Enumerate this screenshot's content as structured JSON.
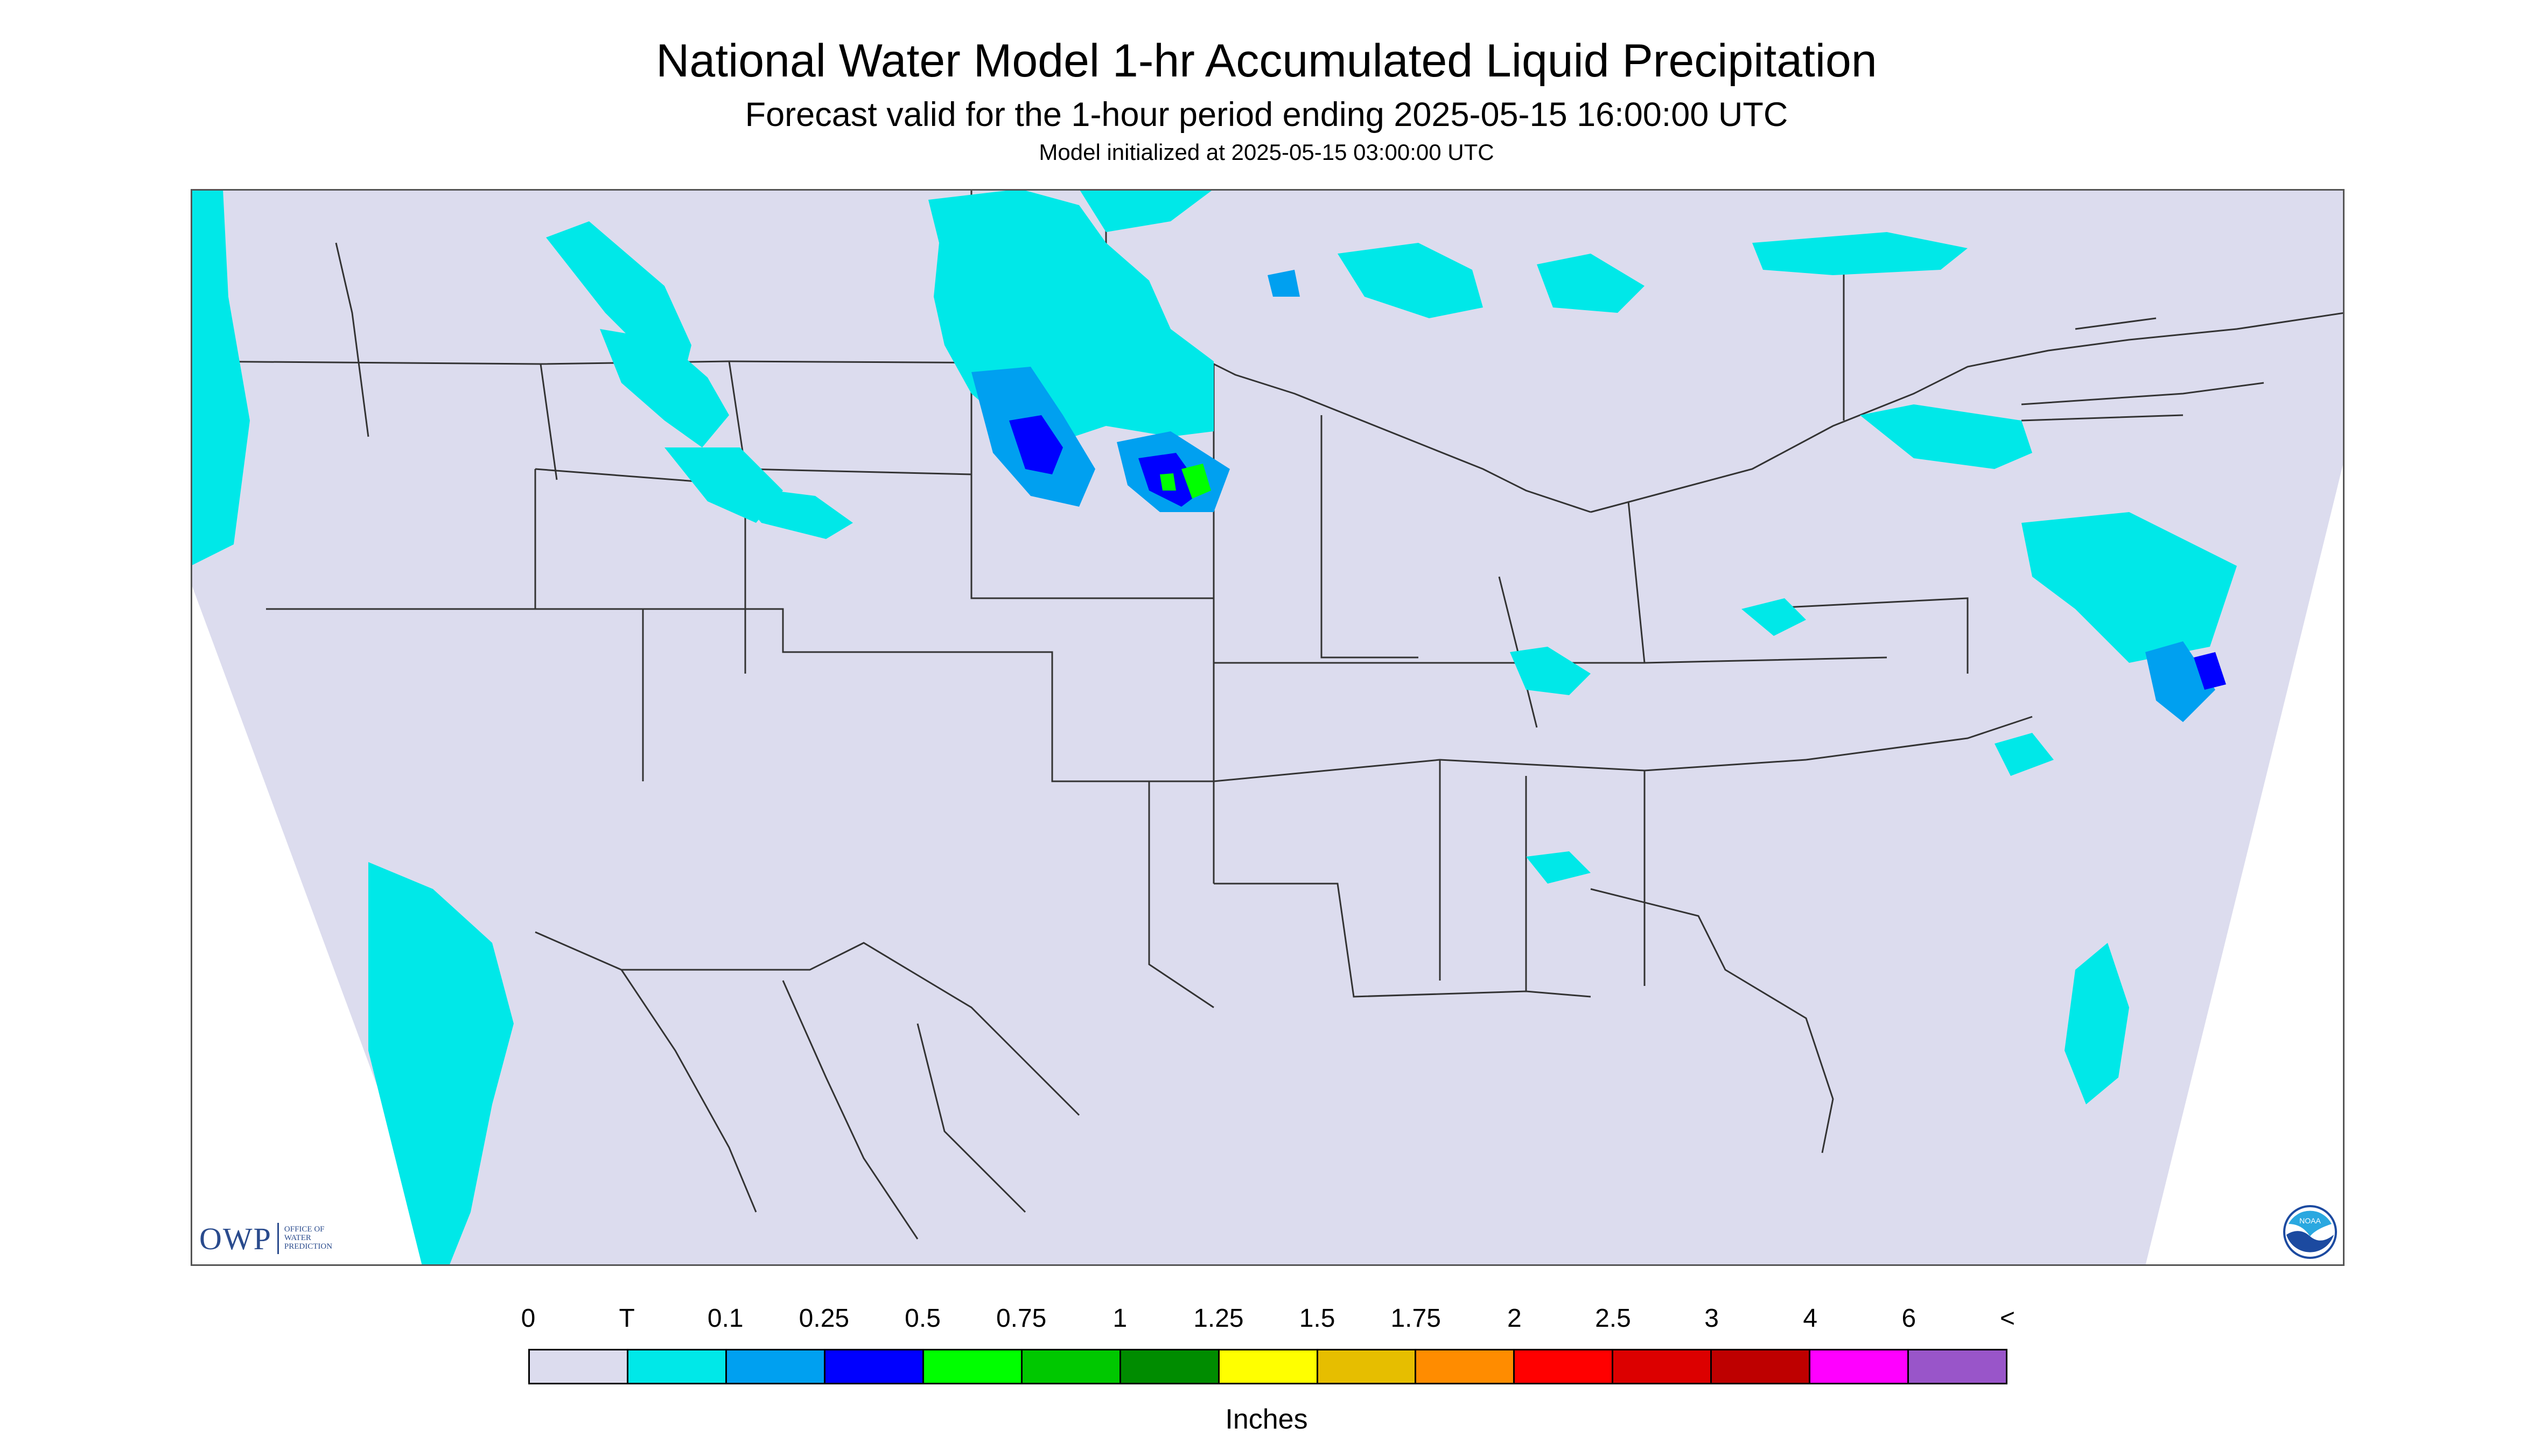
{
  "header": {
    "title": "National Water Model 1-hr Accumulated Liquid Precipitation",
    "subtitle": "Forecast valid for the 1-hour period ending 2025-05-15 16:00:00 UTC",
    "init": "Model initialized at 2025-05-15 03:00:00 UTC"
  },
  "map": {
    "background": "#dcdcee",
    "border_color": "#555555",
    "boundary_color": "#333333"
  },
  "legend": {
    "labels": [
      "0",
      "T",
      "0.1",
      "0.25",
      "0.5",
      "0.75",
      "1",
      "1.25",
      "1.5",
      "1.75",
      "2",
      "2.5",
      "3",
      "4",
      "6",
      "<"
    ],
    "colors": [
      "#dcdcee",
      "#00e8e8",
      "#00a0f0",
      "#0000ff",
      "#00ff00",
      "#00c800",
      "#008c00",
      "#ffff00",
      "#e6be00",
      "#ff8c00",
      "#ff0000",
      "#dc0000",
      "#be0000",
      "#ff00ff",
      "#9955c9"
    ],
    "units": "Inches"
  },
  "logos": {
    "owp_mark": "OWP",
    "owp_text": [
      "OFFICE OF",
      "WATER",
      "PREDICTION"
    ],
    "noaa_text": "NOAA"
  }
}
